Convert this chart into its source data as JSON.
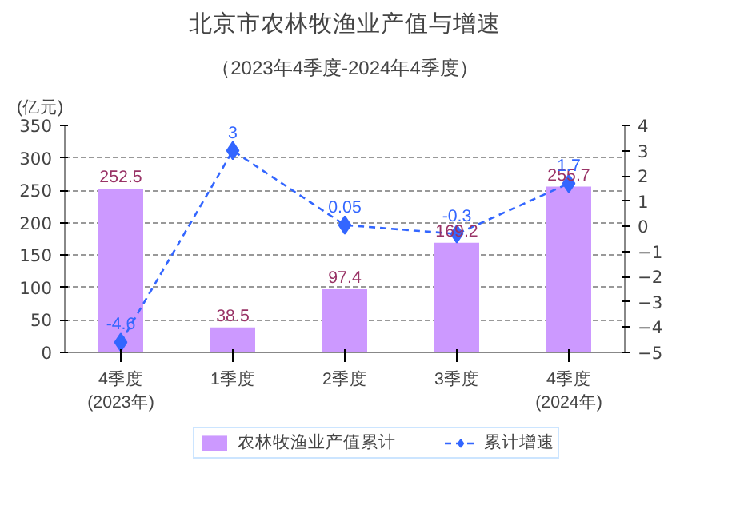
{
  "chart_data": {
    "type": "bar",
    "title": "北京市农林牧渔业产值与增速",
    "subtitle": "（2023年4季度-2024年4季度）",
    "ylabel": "(亿元)",
    "categories": [
      "4季度\n(2023年)",
      "1季度",
      "2季度",
      "3季度",
      "4季度\n(2024年)"
    ],
    "series": [
      {
        "name": "农林牧渔业产值累计",
        "color": "#cc99ff",
        "values": [
          252.5,
          38.5,
          97.4,
          169.2,
          255.7
        ]
      },
      {
        "name": "累计增速",
        "type": "line",
        "axis": "y2",
        "color": "#3366ff",
        "values": [
          -4.6,
          3,
          0.05,
          -0.3,
          1.7
        ],
        "marker": "diamond",
        "line_style": "dashed"
      }
    ],
    "ylim": [
      0,
      350
    ],
    "yticks": [
      0,
      50,
      100,
      150,
      200,
      250,
      300,
      350
    ],
    "y2lim": [
      -5,
      4
    ],
    "y2ticks": [
      -5,
      -4,
      -3,
      -2,
      -1,
      0,
      1,
      2,
      3,
      4
    ],
    "grid": "y",
    "legend": "bottom",
    "data_labels": true
  }
}
